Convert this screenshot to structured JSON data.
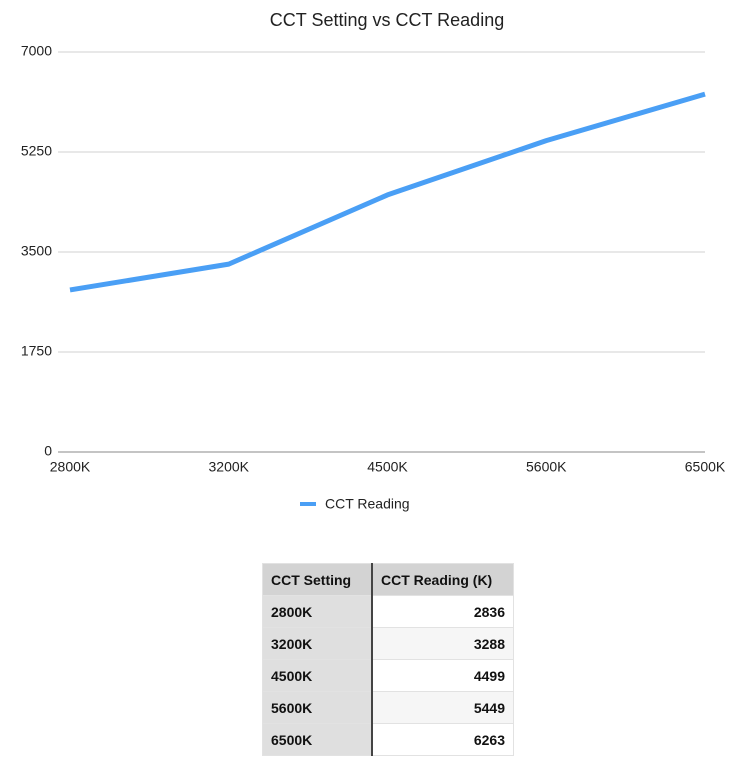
{
  "chart_data": {
    "type": "line",
    "title": "CCT Setting vs CCT Reading",
    "categories": [
      "2800K",
      "3200K",
      "4500K",
      "5600K",
      "6500K"
    ],
    "series": [
      {
        "name": "CCT Reading",
        "color": "#4a9ff5",
        "values": [
          2836,
          3288,
          4499,
          5449,
          6263
        ]
      }
    ],
    "ylim": [
      0,
      7000
    ],
    "yticks": [
      0,
      1750,
      3500,
      5250,
      7000
    ],
    "grid": true,
    "legend": "bottom"
  },
  "table": {
    "header": [
      "CCT Setting",
      "CCT Reading (K)"
    ],
    "rows": [
      [
        "2800K",
        2836
      ],
      [
        "3200K",
        3288
      ],
      [
        "4500K",
        4499
      ],
      [
        "5600K",
        5449
      ],
      [
        "6500K",
        6263
      ]
    ]
  }
}
